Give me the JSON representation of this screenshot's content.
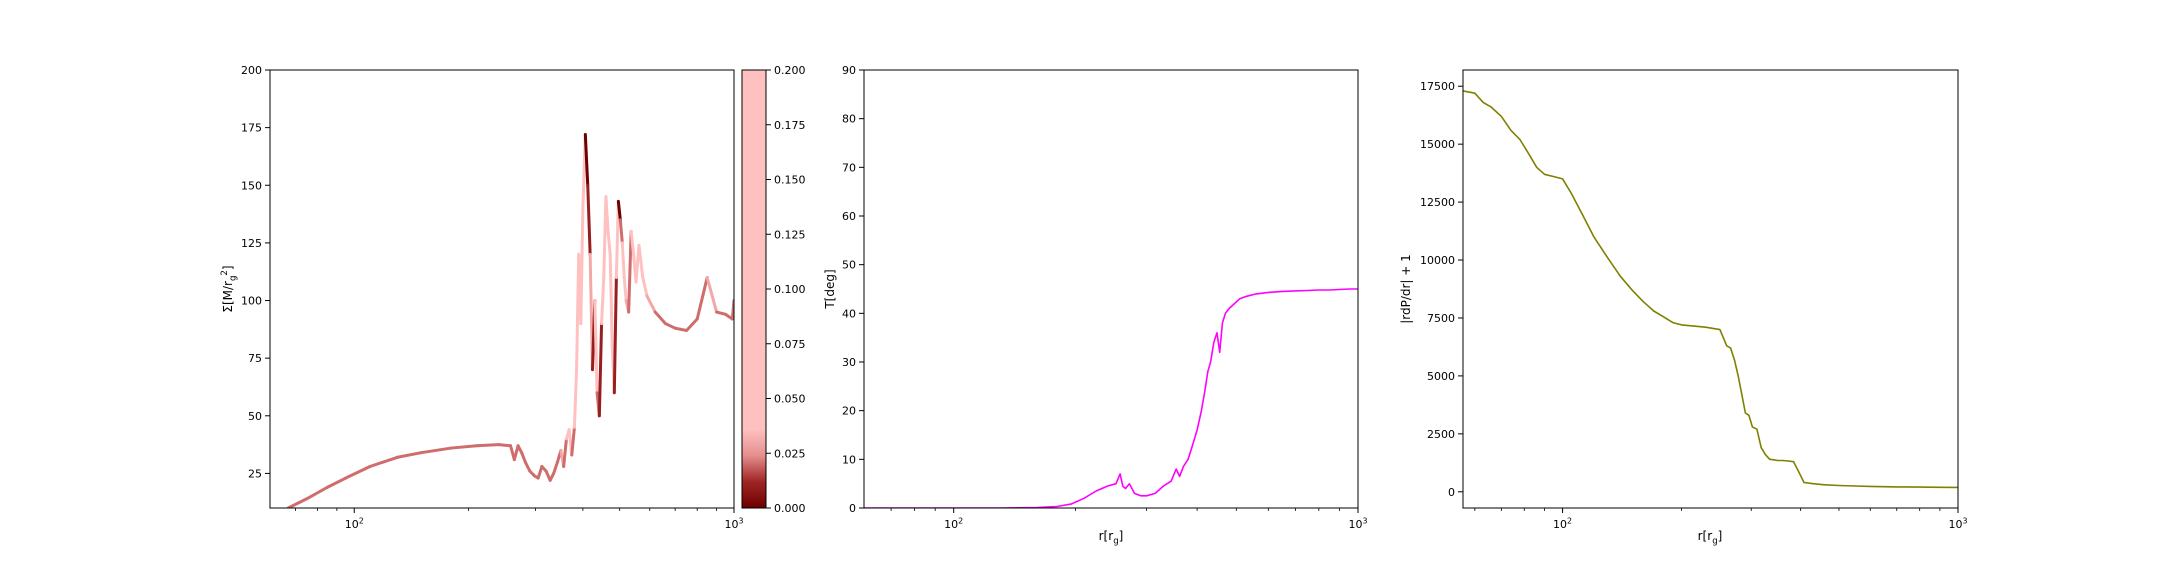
{
  "chart_data": [
    {
      "type": "line",
      "xscale": "log",
      "xlim": [
        60,
        1000
      ],
      "ylim": [
        10,
        200
      ],
      "ylabel": "Σ[M/r_g^2]",
      "xticks": [
        100,
        1000
      ],
      "xtick_labels": [
        "10^2",
        "10^3"
      ],
      "yticks": [
        25,
        50,
        75,
        100,
        125,
        150,
        175,
        200
      ],
      "ytick_labels": [
        "25",
        "50",
        "75",
        "100",
        "125",
        "150",
        "175",
        "200"
      ],
      "colorbar": {
        "range": [
          0,
          0.2
        ],
        "ticks": [
          "0.000",
          "0.025",
          "0.050",
          "0.075",
          "0.100",
          "0.125",
          "0.150",
          "0.175",
          "0.200"
        ],
        "colors": [
          "#6e0000",
          "#a02525",
          "#e68f8f",
          "#ffc0c0"
        ]
      },
      "series": [
        {
          "x": [
            67,
            75,
            85,
            95,
            110,
            130,
            150,
            180,
            210,
            240,
            258,
            264,
            270,
            276,
            282,
            290,
            298,
            305,
            312,
            320,
            328,
            335,
            343,
            350,
            356,
            362,
            368,
            374,
            380,
            385,
            390,
            395,
            400,
            406,
            412,
            418,
            424,
            430,
            436,
            442,
            448,
            454,
            460,
            466,
            472,
            478,
            484,
            490,
            496,
            502,
            508,
            514,
            520,
            528,
            536,
            544,
            552,
            562,
            575,
            590,
            620,
            660,
            700,
            750,
            800,
            850,
            900,
            950,
            990,
            1000
          ],
          "y": [
            10,
            14,
            19,
            23,
            28,
            32,
            34,
            36,
            37,
            37.5,
            37,
            31,
            37,
            34,
            30,
            26,
            24,
            23,
            28,
            26,
            22,
            25,
            30,
            35,
            28,
            40,
            44,
            33,
            45,
            70,
            120,
            90,
            140,
            172,
            150,
            120,
            70,
            100,
            60,
            50,
            90,
            110,
            145,
            130,
            120,
            80,
            60,
            110,
            143,
            135,
            125,
            110,
            100,
            95,
            130,
            120,
            108,
            124,
            110,
            102,
            95,
            90,
            88,
            87,
            92,
            110,
            95,
            94,
            92,
            100
          ],
          "c": [
            0.02,
            0.02,
            0.02,
            0.02,
            0.02,
            0.02,
            0.02,
            0.02,
            0.02,
            0.02,
            0.02,
            0.02,
            0.02,
            0.02,
            0.02,
            0.02,
            0.02,
            0.02,
            0.02,
            0.02,
            0.02,
            0.02,
            0.02,
            0.03,
            0.02,
            0.05,
            0.04,
            0.02,
            0.08,
            0.15,
            0.17,
            0.1,
            0.17,
            0.0,
            0.01,
            0.03,
            0.01,
            0.08,
            0.02,
            0.01,
            0.06,
            0.12,
            0.16,
            0.1,
            0.09,
            0.04,
            0.01,
            0.06,
            0.0,
            0.02,
            0.04,
            0.06,
            0.03,
            0.02,
            0.18,
            0.1,
            0.05,
            0.08,
            0.04,
            0.03,
            0.02,
            0.02,
            0.02,
            0.02,
            0.02,
            0.03,
            0.02,
            0.02,
            0.02,
            0.02
          ]
        }
      ]
    },
    {
      "type": "line",
      "xscale": "log",
      "xlim": [
        60,
        1000
      ],
      "ylim": [
        0,
        90
      ],
      "xlabel": "r[r_g]",
      "ylabel": "T[deg]",
      "xticks": [
        100,
        1000
      ],
      "xtick_labels": [
        "10^2",
        "10^3"
      ],
      "yticks": [
        0,
        10,
        20,
        30,
        40,
        50,
        60,
        70,
        80,
        90
      ],
      "ytick_labels": [
        "0",
        "10",
        "20",
        "30",
        "40",
        "50",
        "60",
        "70",
        "80",
        "90"
      ],
      "color": "#ff00ff",
      "series": [
        {
          "x": [
            60,
            80,
            100,
            130,
            160,
            180,
            195,
            210,
            225,
            240,
            252,
            258,
            262,
            266,
            272,
            280,
            290,
            300,
            315,
            330,
            345,
            355,
            362,
            370,
            380,
            390,
            400,
            410,
            418,
            425,
            432,
            440,
            448,
            455,
            462,
            470,
            480,
            495,
            510,
            530,
            560,
            600,
            650,
            700,
            750,
            800,
            850,
            900,
            950,
            1000
          ],
          "y": [
            0,
            0,
            0,
            0,
            0.1,
            0.3,
            0.8,
            2,
            3.5,
            4.5,
            5,
            7,
            4.5,
            4,
            5,
            3,
            2.5,
            2.5,
            3,
            4.5,
            5.5,
            8,
            6.5,
            8.5,
            10,
            13,
            16,
            20,
            24,
            28,
            30,
            34,
            36,
            32,
            38,
            40,
            41,
            42,
            43,
            43.5,
            44,
            44.3,
            44.5,
            44.6,
            44.7,
            44.8,
            44.8,
            44.9,
            45,
            45
          ]
        }
      ]
    },
    {
      "type": "line",
      "xscale": "log",
      "xlim": [
        56,
        1000
      ],
      "ylim": [
        -700,
        18200
      ],
      "xlabel": "r[r_g]",
      "ylabel": "|rdP/dr| + 1",
      "xticks": [
        100,
        1000
      ],
      "xtick_labels": [
        "10^2",
        "10^3"
      ],
      "yticks": [
        0,
        2500,
        5000,
        7500,
        10000,
        12500,
        15000,
        17500
      ],
      "ytick_labels": [
        "0",
        "2500",
        "5000",
        "7500",
        "10000",
        "12500",
        "15000",
        "17500"
      ],
      "color": "#808000",
      "series": [
        {
          "x": [
            56,
            60,
            63,
            66,
            70,
            74,
            78,
            82,
            86,
            90,
            95,
            100,
            105,
            112,
            120,
            130,
            140,
            150,
            160,
            170,
            180,
            190,
            200,
            215,
            230,
            250,
            260,
            266,
            272,
            278,
            284,
            290,
            296,
            302,
            310,
            318,
            326,
            334,
            342,
            350,
            360,
            372,
            384,
            396,
            408,
            430,
            460,
            500,
            550,
            600,
            700,
            800,
            900,
            1000
          ],
          "y": [
            17300,
            17200,
            16800,
            16600,
            16200,
            15600,
            15200,
            14600,
            14000,
            13700,
            13600,
            13500,
            12900,
            12000,
            11000,
            10100,
            9300,
            8700,
            8200,
            7800,
            7550,
            7300,
            7200,
            7150,
            7100,
            7000,
            6300,
            6200,
            5700,
            5000,
            4200,
            3400,
            3300,
            2800,
            2700,
            1900,
            1600,
            1400,
            1380,
            1350,
            1350,
            1330,
            1300,
            850,
            400,
            350,
            300,
            270,
            250,
            230,
            210,
            200,
            195,
            190
          ]
        }
      ]
    }
  ]
}
